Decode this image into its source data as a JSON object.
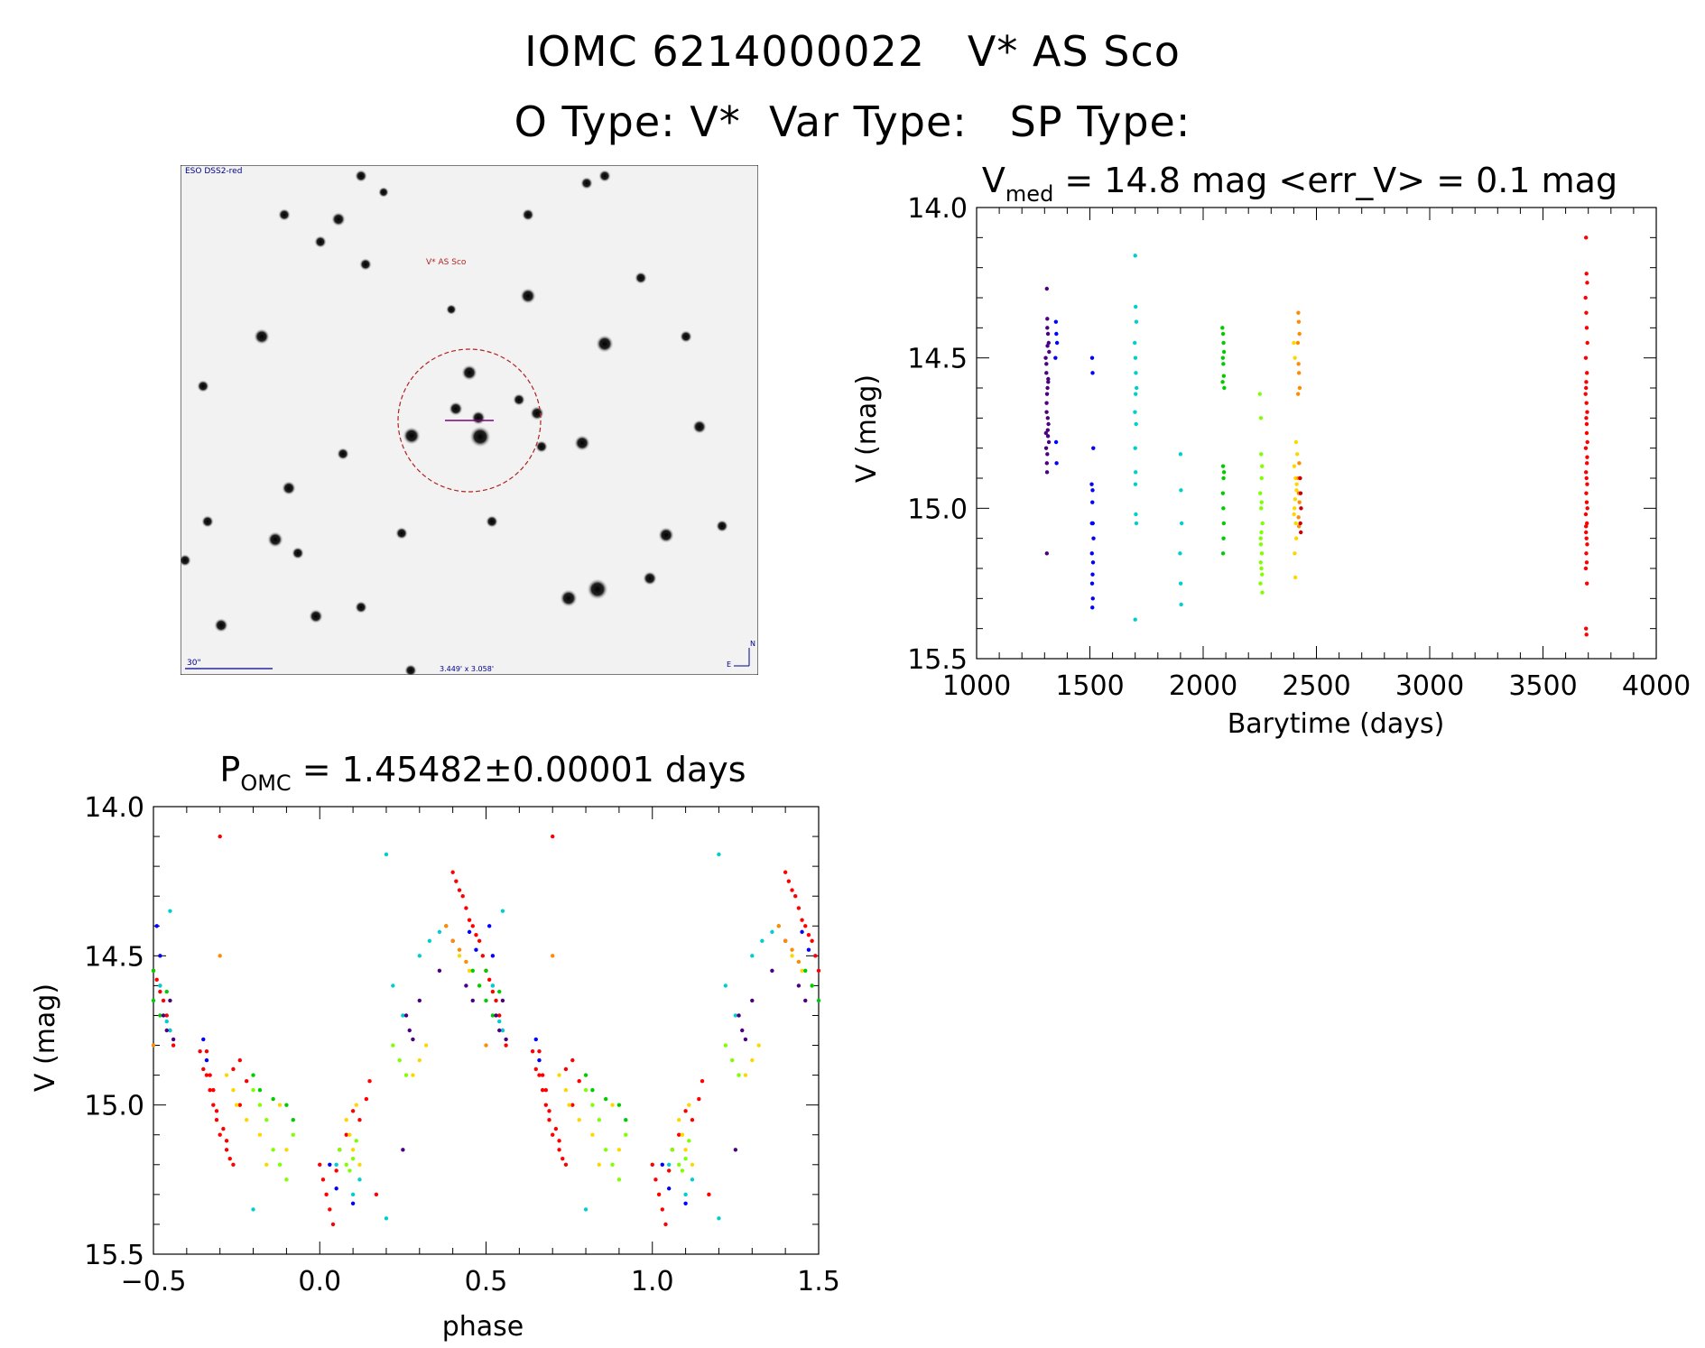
{
  "header": {
    "title": "IOMC 6214000022   V* AS Sco",
    "subtitle": "O Type: V*  Var Type:   SP Type:"
  },
  "sky_image": {
    "survey_label": "ESO DSS2-red",
    "target_label": "V* AS Sco",
    "scale_label": "30\"",
    "fov_label": "3.449' x 3.058'",
    "north_label": "N",
    "east_label": "E",
    "circle_color": "#b22222",
    "crosshair_color": "#800080",
    "label_color": "#00008b"
  },
  "chart_data": [
    {
      "type": "scatter",
      "title_main": "V",
      "title_sub": "med",
      "title_rest": " = 14.8 mag <err_V> = 0.1 mag",
      "xlabel": "Barytime (days)",
      "ylabel": "V (mag)",
      "xlim": [
        1000,
        4000
      ],
      "ylim": [
        15.5,
        14.0
      ],
      "y_inverted": true,
      "xticks": [
        1000,
        1500,
        2000,
        2500,
        3000,
        3500,
        4000
      ],
      "xtick_labels": [
        "1000",
        "1500",
        "2000",
        "2500",
        "3000",
        "3500",
        "4000"
      ],
      "yticks": [
        14.0,
        14.5,
        15.0,
        15.5
      ],
      "ytick_labels": [
        "14.0",
        "14.5",
        "15.0",
        "15.5"
      ],
      "series": [
        {
          "color": "#4b0082",
          "x": [
            1310,
            1312,
            1315,
            1318,
            1305,
            1308,
            1320,
            1313,
            1311,
            1309,
            1316,
            1314,
            1317,
            1306,
            1319,
            1307,
            1312,
            1310,
            1315,
            1311,
            1308,
            1313,
            1316,
            1309,
            1314,
            1310,
            1312
          ],
          "y": [
            14.27,
            14.37,
            14.42,
            14.45,
            14.5,
            14.55,
            14.48,
            14.6,
            14.62,
            14.65,
            14.58,
            14.7,
            14.72,
            14.75,
            14.78,
            14.8,
            14.82,
            14.85,
            14.76,
            14.88,
            14.52,
            14.46,
            14.57,
            14.68,
            14.74,
            15.15,
            14.4
          ]
        },
        {
          "color": "#0000ff",
          "x": [
            1350,
            1352,
            1355,
            1348,
            1351,
            1353,
            1510,
            1512,
            1515,
            1508,
            1511,
            1513,
            1516,
            1509,
            1514,
            1512,
            1510,
            1513,
            1511,
            1509,
            1512
          ],
          "y": [
            14.38,
            14.42,
            14.45,
            14.5,
            14.78,
            14.85,
            14.5,
            14.55,
            14.8,
            14.92,
            14.98,
            15.05,
            15.1,
            15.15,
            15.18,
            15.22,
            15.25,
            15.3,
            15.33,
            15.05,
            14.94
          ]
        },
        {
          "color": "#00ced1",
          "x": [
            1700,
            1702,
            1705,
            1698,
            1701,
            1703,
            1706,
            1699,
            1704,
            1700,
            1702,
            1701,
            1703,
            1705,
            1700,
            1702,
            1900,
            1902,
            1905,
            1898,
            1901,
            1903
          ],
          "y": [
            14.16,
            14.33,
            14.38,
            14.45,
            14.5,
            14.55,
            14.6,
            14.68,
            14.72,
            14.8,
            14.88,
            14.92,
            15.02,
            15.05,
            15.37,
            14.62,
            14.82,
            14.94,
            15.05,
            15.15,
            15.25,
            15.32
          ]
        },
        {
          "color": "#00cc00",
          "x": [
            2085,
            2088,
            2090,
            2092,
            2087,
            2089,
            2091,
            2086,
            2093,
            2088,
            2090,
            2087,
            2089,
            2091,
            2090,
            2088,
            2092
          ],
          "y": [
            14.4,
            14.42,
            14.45,
            14.48,
            14.5,
            14.52,
            14.56,
            14.58,
            14.6,
            14.86,
            14.9,
            14.95,
            15.0,
            15.05,
            15.1,
            15.15,
            14.88
          ]
        },
        {
          "color": "#7fff00",
          "x": [
            2250,
            2255,
            2260,
            2258,
            2252,
            2256,
            2262,
            2254,
            2259,
            2257,
            2253,
            2261,
            2256,
            2258,
            2255,
            2257,
            2260,
            2254
          ],
          "y": [
            14.62,
            14.7,
            14.86,
            14.9,
            14.95,
            15.0,
            15.05,
            15.1,
            15.15,
            15.2,
            15.25,
            15.28,
            14.82,
            14.98,
            15.12,
            15.08,
            15.22,
            15.18
          ]
        },
        {
          "color": "#ffd700",
          "x": [
            2400,
            2405,
            2410,
            2415,
            2402,
            2408,
            2412,
            2406,
            2403,
            2409,
            2411,
            2404,
            2407,
            2413,
            2401
          ],
          "y": [
            14.45,
            14.5,
            14.78,
            14.82,
            14.86,
            14.9,
            14.94,
            14.97,
            15.0,
            15.05,
            15.1,
            15.15,
            15.23,
            14.92,
            15.02
          ]
        },
        {
          "color": "#ff8c00",
          "x": [
            2420,
            2422,
            2425,
            2418,
            2421,
            2423,
            2426,
            2419,
            2424,
            2420,
            2422,
            2425,
            2421,
            2423
          ],
          "y": [
            14.35,
            14.38,
            14.42,
            14.45,
            14.52,
            14.55,
            14.6,
            14.62,
            14.85,
            14.9,
            14.95,
            14.98,
            15.03,
            15.06
          ]
        },
        {
          "color": "#ff0000",
          "x": [
            3690,
            3692,
            3695,
            3688,
            3691,
            3693,
            3696,
            3689,
            3694,
            3690,
            3692,
            3695,
            3691,
            3693,
            3689,
            3694,
            3690,
            3692,
            3695,
            3691,
            3693,
            3696,
            3689,
            3694,
            3690,
            3692,
            3695,
            3691,
            3693,
            3689,
            3694,
            3690,
            3692,
            3688,
            3696,
            3691,
            3693,
            3695,
            3690
          ],
          "y": [
            14.1,
            14.22,
            14.25,
            14.3,
            14.35,
            14.4,
            14.45,
            14.5,
            14.55,
            14.6,
            14.65,
            14.68,
            14.7,
            14.75,
            14.8,
            14.85,
            14.88,
            14.9,
            14.92,
            14.95,
            14.98,
            15.0,
            15.02,
            15.05,
            15.08,
            15.1,
            15.12,
            15.15,
            15.18,
            15.2,
            15.25,
            15.4,
            15.42,
            14.62,
            14.78,
            14.58,
            14.72,
            14.83,
            15.06
          ]
        },
        {
          "color": "#cc0000",
          "x": [
            2428,
            2430,
            2432,
            2429,
            2431
          ],
          "y": [
            14.9,
            14.95,
            15.0,
            15.05,
            15.08
          ]
        }
      ]
    },
    {
      "type": "scatter",
      "title_main": "P",
      "title_sub": "OMC",
      "title_rest": " = 1.45482±0.00001 days",
      "xlabel": "phase",
      "ylabel": "V (mag)",
      "xlim": [
        -0.5,
        1.5
      ],
      "ylim": [
        15.5,
        14.0
      ],
      "y_inverted": true,
      "xticks": [
        -0.5,
        0.0,
        0.5,
        1.0,
        1.5
      ],
      "xtick_labels": [
        "−0.5",
        "0.0",
        "0.5",
        "1.0",
        "1.5"
      ],
      "yticks": [
        14.0,
        14.5,
        15.0,
        15.5
      ],
      "ytick_labels": [
        "14.0",
        "14.5",
        "15.0",
        "15.5"
      ],
      "phase_period": 1.0,
      "series": [
        {
          "color": "#ff0000",
          "x": [
            0.4,
            0.41,
            0.42,
            0.43,
            0.44,
            0.45,
            0.46,
            0.47,
            0.48,
            0.49,
            0.5,
            0.51,
            0.52,
            0.53,
            0.54,
            0.55,
            0.56,
            0.64,
            0.65,
            0.66,
            0.67,
            0.68,
            0.69,
            0.7,
            0.72,
            0.74,
            0.76,
            0.78,
            -0.3,
            -0.34,
            -0.33,
            -0.32,
            -0.31,
            -0.29,
            -0.28,
            -0.27,
            -0.26,
            -0.24,
            0.0,
            0.01,
            0.02,
            0.03,
            0.04,
            0.05,
            0.06,
            0.08,
            0.1,
            0.12,
            0.14,
            0.15,
            0.17
          ],
          "y": [
            14.22,
            14.25,
            14.28,
            14.3,
            14.34,
            14.38,
            14.4,
            14.43,
            14.45,
            14.5,
            14.55,
            14.58,
            14.62,
            14.65,
            14.7,
            14.75,
            14.8,
            14.82,
            14.88,
            14.9,
            14.95,
            15.0,
            15.05,
            15.1,
            15.15,
            15.2,
            14.85,
            14.92,
            14.1,
            14.82,
            14.9,
            14.95,
            15.02,
            15.08,
            15.12,
            15.18,
            14.88,
            15.0,
            15.2,
            15.25,
            15.3,
            15.35,
            15.4,
            15.22,
            15.15,
            15.1,
            15.02,
            15.05,
            14.98,
            14.92,
            15.3
          ]
        },
        {
          "color": "#ffd700",
          "x": [
            0.38,
            0.42,
            0.45,
            0.48,
            -0.28,
            -0.26,
            -0.25,
            -0.22,
            -0.18,
            -0.16,
            -0.12,
            -0.1,
            0.08,
            0.09,
            0.1,
            0.11,
            0.12,
            0.28,
            0.3,
            0.32
          ],
          "y": [
            14.4,
            14.5,
            14.55,
            14.6,
            14.9,
            14.95,
            15.0,
            15.05,
            15.1,
            15.2,
            15.0,
            15.15,
            15.05,
            15.1,
            15.15,
            15.0,
            15.2,
            14.9,
            14.85,
            14.8
          ]
        },
        {
          "color": "#7fff00",
          "x": [
            -0.2,
            -0.18,
            -0.16,
            -0.14,
            -0.12,
            -0.1,
            -0.08,
            0.06,
            0.08,
            0.09,
            0.1,
            0.11,
            0.22,
            0.24,
            0.26
          ],
          "y": [
            14.95,
            15.0,
            15.05,
            15.15,
            15.2,
            15.25,
            15.1,
            15.15,
            15.2,
            15.22,
            15.18,
            15.12,
            14.8,
            14.85,
            14.9
          ]
        },
        {
          "color": "#00cc00",
          "x": [
            -0.2,
            -0.18,
            -0.14,
            -0.1,
            -0.08,
            0.46,
            0.48,
            0.5,
            0.52,
            0.54,
            -0.5,
            -0.48
          ],
          "y": [
            14.9,
            14.95,
            14.98,
            15.0,
            15.05,
            14.55,
            14.6,
            14.65,
            14.7,
            14.62,
            14.55,
            14.6
          ]
        },
        {
          "color": "#00ced1",
          "x": [
            0.2,
            0.2,
            0.22,
            0.25,
            0.3,
            0.33,
            0.36,
            0.38,
            -0.45,
            -0.46,
            0.52,
            0.55,
            0.1,
            0.12,
            -0.2,
            0.05
          ],
          "y": [
            14.16,
            15.38,
            14.6,
            14.7,
            14.5,
            14.45,
            14.42,
            14.4,
            14.35,
            14.72,
            14.6,
            14.75,
            15.3,
            15.25,
            15.35,
            15.2
          ]
        },
        {
          "color": "#0000ff",
          "x": [
            -0.35,
            -0.34,
            0.03,
            0.05,
            0.1,
            0.45,
            0.47,
            -0.49,
            -0.48
          ],
          "y": [
            14.78,
            14.85,
            15.2,
            15.28,
            15.33,
            14.42,
            14.48,
            14.4,
            14.5
          ]
        },
        {
          "color": "#4b0082",
          "x": [
            0.26,
            0.27,
            0.28,
            0.3,
            0.36,
            0.4,
            0.44,
            0.46,
            -0.47,
            -0.46,
            -0.45,
            -0.44,
            0.25
          ],
          "y": [
            14.7,
            14.75,
            14.78,
            14.65,
            14.55,
            14.45,
            14.6,
            14.65,
            14.7,
            14.75,
            14.65,
            14.78,
            15.15
          ]
        },
        {
          "color": "#ff8c00",
          "x": [
            -0.3,
            0.38,
            0.4,
            0.42,
            0.44,
            -0.5
          ],
          "y": [
            14.5,
            14.4,
            14.45,
            14.48,
            14.52,
            14.8
          ]
        }
      ]
    }
  ]
}
